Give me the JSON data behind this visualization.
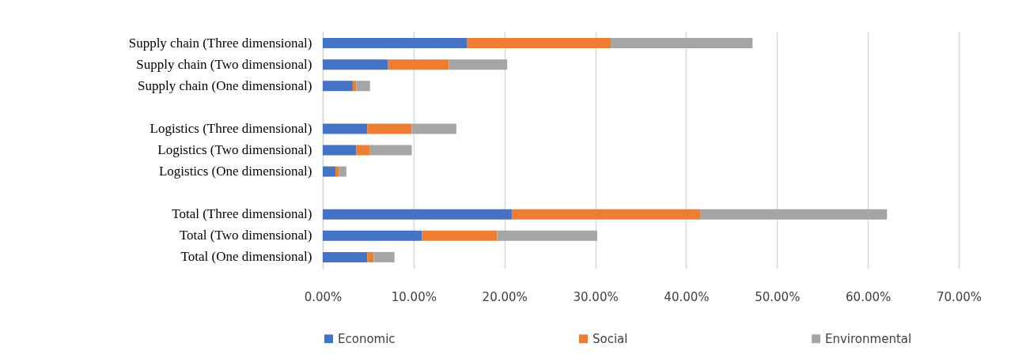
{
  "chart_data": {
    "type": "bar",
    "orientation": "horizontal",
    "stacked": true,
    "categories": [
      "Supply chain (Three dimensional)",
      "Supply chain (Two dimensional)",
      "Supply chain (One dimensional)",
      null,
      "Logistics (Three dimensional)",
      "Logistics (Two dimensional)",
      "Logistics (One dimensional)",
      null,
      "Total (Three dimensional)",
      "Total (Two dimensional)",
      "Total (One dimensional)"
    ],
    "series": [
      {
        "name": "Economic",
        "color": "#4472c4",
        "values": [
          15.9,
          7.2,
          3.3,
          null,
          4.9,
          3.7,
          1.4,
          null,
          20.8,
          10.9,
          4.9
        ]
      },
      {
        "name": "Social",
        "color": "#ed7d31",
        "values": [
          15.8,
          6.7,
          0.4,
          null,
          4.9,
          1.5,
          0.4,
          null,
          20.8,
          8.3,
          0.7
        ]
      },
      {
        "name": "Environmental",
        "color": "#a5a5a5",
        "values": [
          15.6,
          6.4,
          1.5,
          null,
          4.9,
          4.6,
          0.8,
          null,
          20.5,
          11.0,
          2.3
        ]
      }
    ],
    "xlim": [
      0,
      70
    ],
    "xticks": [
      {
        "value": 0,
        "label": "0.00%"
      },
      {
        "value": 10,
        "label": "10.00%"
      },
      {
        "value": 20,
        "label": "20.00%"
      },
      {
        "value": 30,
        "label": "30.00%"
      },
      {
        "value": 40,
        "label": "40.00%"
      },
      {
        "value": 50,
        "label": "50.00%"
      },
      {
        "value": 60,
        "label": "60.00%"
      },
      {
        "value": 70,
        "label": "70.00%"
      }
    ],
    "grid": "x",
    "legend": "bottom"
  }
}
